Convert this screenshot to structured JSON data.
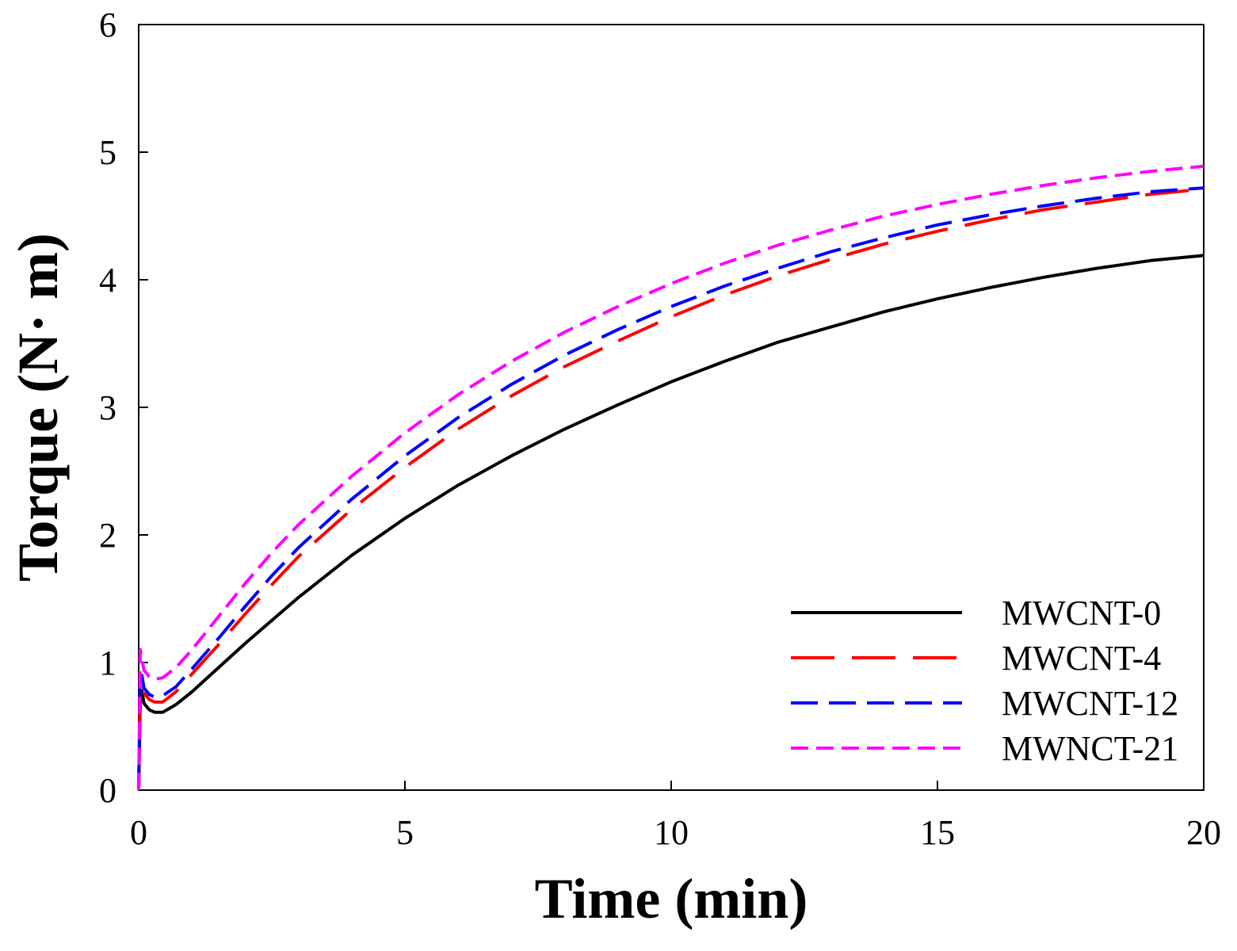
{
  "chart_data": {
    "type": "line",
    "title": "",
    "xlabel": "Time (min)",
    "ylabel": "Torque (N· m)",
    "xlim": [
      0,
      20
    ],
    "ylim": [
      0,
      6
    ],
    "xticks": [
      0,
      5,
      10,
      15,
      20
    ],
    "yticks": [
      0,
      1,
      2,
      3,
      4,
      5,
      6
    ],
    "grid": false,
    "legend_position": "bottom-right",
    "series": [
      {
        "name": "MWCNT-0",
        "color": "#000000",
        "dash": "solid",
        "x": [
          0,
          0.03,
          0.06,
          0.1,
          0.2,
          0.3,
          0.45,
          0.7,
          1,
          1.5,
          2,
          2.5,
          3,
          4,
          5,
          6,
          7,
          8,
          9,
          10,
          11,
          12,
          13,
          14,
          15,
          16,
          17,
          18,
          19,
          20
        ],
        "y": [
          0,
          0.72,
          0.78,
          0.68,
          0.63,
          0.61,
          0.61,
          0.67,
          0.77,
          0.96,
          1.15,
          1.33,
          1.51,
          1.84,
          2.13,
          2.39,
          2.62,
          2.83,
          3.02,
          3.2,
          3.36,
          3.51,
          3.63,
          3.75,
          3.85,
          3.94,
          4.02,
          4.09,
          4.15,
          4.19
        ]
      },
      {
        "name": "MWCNT-4",
        "color": "#ff0000",
        "dash": "long",
        "x": [
          0,
          0.03,
          0.06,
          0.1,
          0.2,
          0.3,
          0.45,
          0.7,
          1,
          1.5,
          2,
          2.5,
          3,
          4,
          5,
          6,
          7,
          8,
          9,
          10,
          11,
          12,
          13,
          14,
          15,
          16,
          17,
          18,
          19,
          20
        ],
        "y": [
          0,
          0.84,
          0.86,
          0.76,
          0.71,
          0.69,
          0.69,
          0.77,
          0.91,
          1.14,
          1.38,
          1.61,
          1.83,
          2.2,
          2.53,
          2.83,
          3.09,
          3.32,
          3.52,
          3.71,
          3.88,
          4.03,
          4.16,
          4.28,
          4.38,
          4.47,
          4.55,
          4.61,
          4.67,
          4.71
        ]
      },
      {
        "name": "MWCNT-12",
        "color": "#0000ff",
        "dash": "medium",
        "x": [
          0,
          0.03,
          0.06,
          0.1,
          0.2,
          0.3,
          0.45,
          0.7,
          1,
          1.5,
          2,
          2.5,
          3,
          4,
          5,
          6,
          7,
          8,
          9,
          10,
          11,
          12,
          13,
          14,
          15,
          16,
          17,
          18,
          19,
          20
        ],
        "y": [
          0,
          0.87,
          0.9,
          0.8,
          0.75,
          0.73,
          0.74,
          0.81,
          0.95,
          1.19,
          1.44,
          1.68,
          1.9,
          2.28,
          2.62,
          2.92,
          3.18,
          3.41,
          3.61,
          3.79,
          3.95,
          4.09,
          4.22,
          4.33,
          4.43,
          4.51,
          4.58,
          4.64,
          4.69,
          4.72
        ]
      },
      {
        "name": "MWNCT-21",
        "color": "#ff00ff",
        "dash": "short",
        "x": [
          0,
          0.03,
          0.06,
          0.1,
          0.2,
          0.3,
          0.45,
          0.7,
          1,
          1.5,
          2,
          2.5,
          3,
          4,
          5,
          6,
          7,
          8,
          9,
          10,
          11,
          12,
          13,
          14,
          15,
          16,
          17,
          18,
          19,
          20
        ],
        "y": [
          0,
          1.1,
          1.03,
          0.94,
          0.89,
          0.87,
          0.88,
          0.96,
          1.1,
          1.36,
          1.62,
          1.86,
          2.08,
          2.46,
          2.8,
          3.1,
          3.36,
          3.59,
          3.79,
          3.97,
          4.13,
          4.27,
          4.39,
          4.5,
          4.59,
          4.67,
          4.74,
          4.8,
          4.85,
          4.89
        ]
      }
    ]
  }
}
